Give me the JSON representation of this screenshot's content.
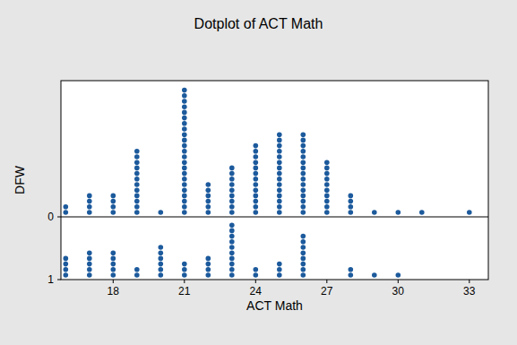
{
  "chart_data": {
    "type": "dotplot",
    "title": "Dotplot of ACT Math",
    "x_label": "ACT Math",
    "y_label": "DFW",
    "x": [
      16,
      17,
      18,
      19,
      20,
      21,
      22,
      23,
      24,
      25,
      26,
      27,
      28,
      29,
      30,
      31,
      32,
      33
    ],
    "series": [
      {
        "name": "0",
        "color": "#1c5a9c",
        "values": [
          2,
          4,
          4,
          12,
          1,
          23,
          6,
          9,
          13,
          15,
          15,
          10,
          4,
          1,
          1,
          1,
          0,
          1
        ]
      },
      {
        "name": "1",
        "color": "#1c5a9c",
        "values": [
          4,
          5,
          5,
          2,
          6,
          3,
          4,
          10,
          2,
          3,
          8,
          0,
          2,
          1,
          1,
          0,
          0,
          0
        ]
      }
    ],
    "xlim": [
      15.8,
      33.8
    ],
    "xticks": [
      18,
      21,
      24,
      27,
      30,
      33
    ],
    "grid": false
  }
}
